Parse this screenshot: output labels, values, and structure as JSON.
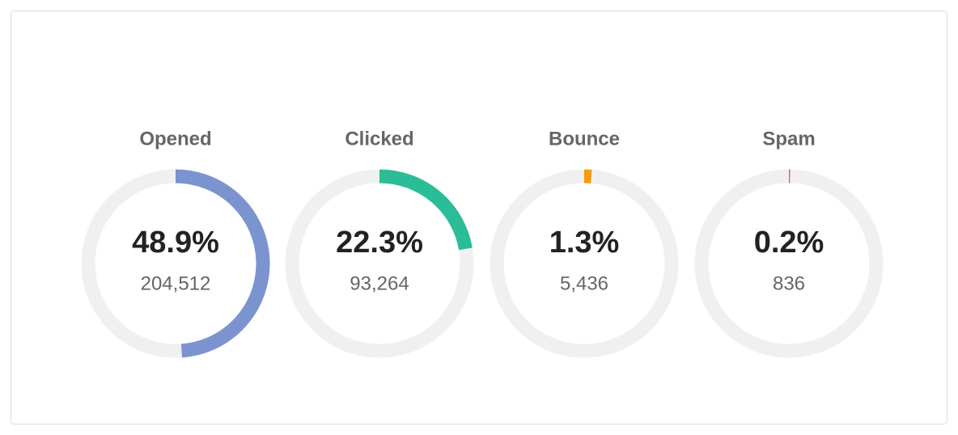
{
  "chart_data": [
    {
      "type": "gauge",
      "title": "Opened",
      "values": [
        48.9
      ],
      "value_labels": [
        "48.9%"
      ],
      "subtitle": "204,512",
      "color": "#7b93cf",
      "ylim": [
        0,
        100
      ]
    },
    {
      "type": "gauge",
      "title": "Clicked",
      "values": [
        22.3
      ],
      "value_labels": [
        "22.3%"
      ],
      "subtitle": "93,264",
      "color": "#2bbd98",
      "ylim": [
        0,
        100
      ]
    },
    {
      "type": "gauge",
      "title": "Bounce",
      "values": [
        1.3
      ],
      "value_labels": [
        "1.3%"
      ],
      "subtitle": "5,436",
      "color": "#f39c12",
      "ylim": [
        0,
        100
      ]
    },
    {
      "type": "gauge",
      "title": "Spam",
      "values": [
        0.2
      ],
      "value_labels": [
        "0.2%"
      ],
      "subtitle": "836",
      "color": "#ef5b4b",
      "ylim": [
        0,
        100
      ]
    }
  ]
}
